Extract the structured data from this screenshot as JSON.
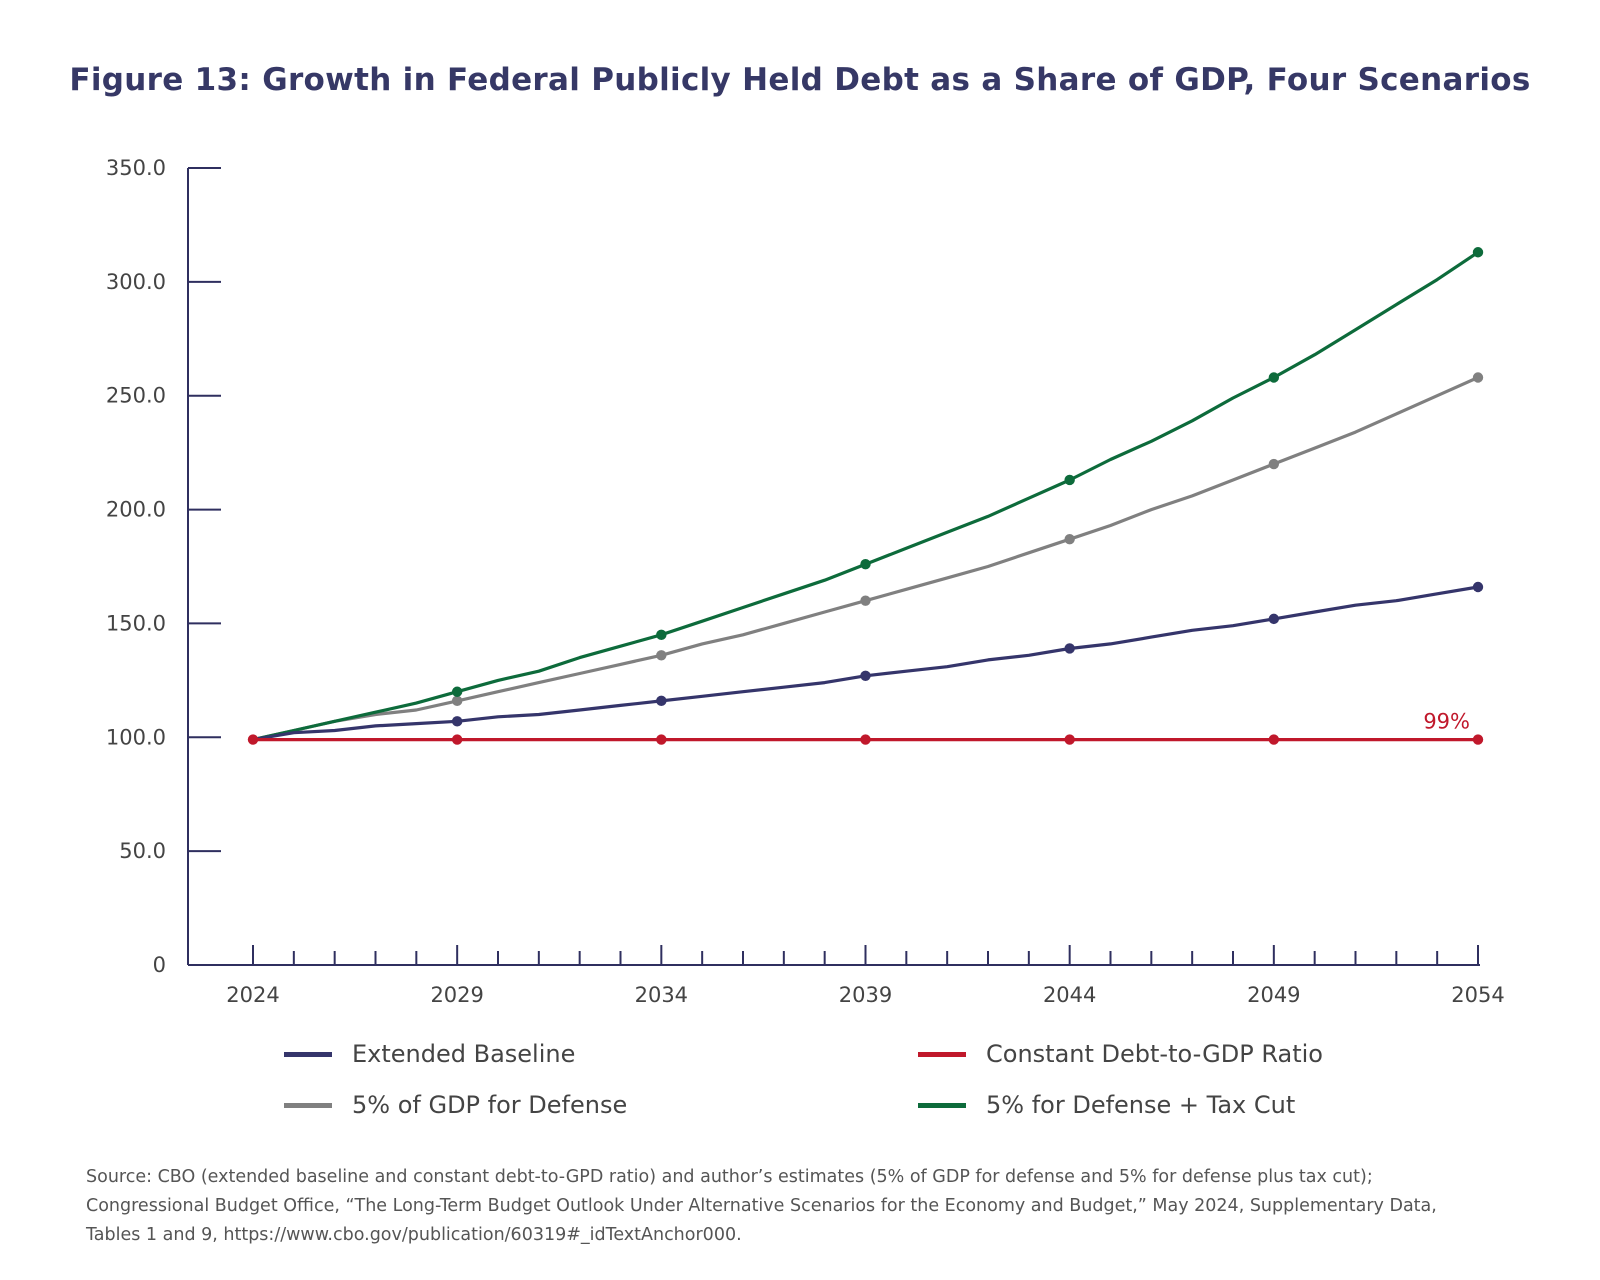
{
  "title": "Figure 13: Growth in Federal Publicly Held Debt as a Share of GDP, Four Scenarios",
  "source_lines": [
    "Source: CBO (extended baseline and constant debt-to-GPD ratio) and author’s estimates (5% of GDP for defense and 5% for defense plus tax cut);",
    "Congressional Budget Office, “The Long-Term Budget Outlook Under Alternative Scenarios for the Economy and Budget,” May 2024, Supplementary Data,",
    "Tables 1 and 9, https://www.cbo.gov/publication/60319#_idTextAnchor000."
  ],
  "chart_data": {
    "type": "line",
    "title": "Figure 13: Growth in Federal Publicly Held Debt as a Share of GDP, Four Scenarios",
    "xlabel": "",
    "ylabel": "",
    "xlim": [
      2024,
      2054
    ],
    "ylim": [
      0,
      350
    ],
    "x_ticks": [
      "2024",
      "2029",
      "2034",
      "2039",
      "2044",
      "2049",
      "2054"
    ],
    "y_ticks": [
      "0",
      "50.0",
      "100.0",
      "150.0",
      "200.0",
      "250.0",
      "300.0",
      "350.0"
    ],
    "x": [
      2024,
      2025,
      2026,
      2027,
      2028,
      2029,
      2030,
      2031,
      2032,
      2033,
      2034,
      2035,
      2036,
      2037,
      2038,
      2039,
      2040,
      2041,
      2042,
      2043,
      2044,
      2045,
      2046,
      2047,
      2048,
      2049,
      2050,
      2051,
      2052,
      2053,
      2054
    ],
    "marker_x": [
      2024,
      2029,
      2034,
      2039,
      2044,
      2049,
      2054
    ],
    "grid": false,
    "legend_position": "bottom",
    "annotations": [
      {
        "text": "99%",
        "x": 2054,
        "y": 99,
        "color": "#c0182b"
      }
    ],
    "series": [
      {
        "name": "Extended Baseline",
        "color": "#35356b",
        "values": [
          99,
          102,
          103,
          105,
          106,
          107,
          109,
          110,
          112,
          114,
          116,
          118,
          120,
          122,
          124,
          127,
          129,
          131,
          134,
          136,
          139,
          141,
          144,
          147,
          149,
          152,
          155,
          158,
          160,
          163,
          166
        ]
      },
      {
        "name": "5% of GDP for Defense",
        "color": "#808080",
        "values": [
          99,
          103,
          107,
          110,
          112,
          116,
          120,
          124,
          128,
          132,
          136,
          141,
          145,
          150,
          155,
          160,
          165,
          170,
          175,
          181,
          187,
          193,
          200,
          206,
          213,
          220,
          227,
          234,
          242,
          250,
          258
        ]
      },
      {
        "name": "Constant Debt-to-GDP Ratio",
        "color": "#c0182b",
        "values": [
          99,
          99,
          99,
          99,
          99,
          99,
          99,
          99,
          99,
          99,
          99,
          99,
          99,
          99,
          99,
          99,
          99,
          99,
          99,
          99,
          99,
          99,
          99,
          99,
          99,
          99,
          99,
          99,
          99,
          99,
          99
        ]
      },
      {
        "name": "5% for Defense + Tax Cut",
        "color": "#0d6b3b",
        "values": [
          99,
          103,
          107,
          111,
          115,
          120,
          125,
          129,
          135,
          140,
          145,
          151,
          157,
          163,
          169,
          176,
          183,
          190,
          197,
          205,
          213,
          222,
          230,
          239,
          249,
          258,
          268,
          279,
          290,
          301,
          313
        ]
      }
    ]
  }
}
